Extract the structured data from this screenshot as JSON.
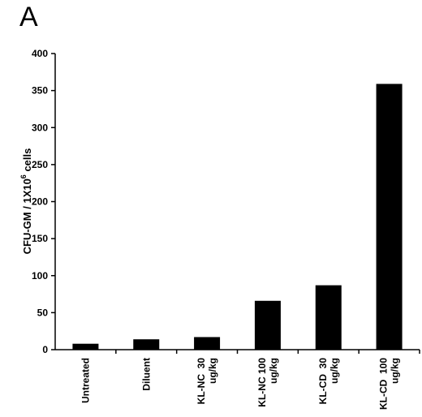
{
  "panel_label": "A",
  "chart_data": {
    "type": "bar",
    "categories": [
      [
        "Untreated"
      ],
      [
        "Diluent"
      ],
      [
        "KL-NC  30",
        "ug/kg"
      ],
      [
        "KL-NC 100",
        "ug/kg"
      ],
      [
        "KL-CD  30",
        "ug/kg"
      ],
      [
        "KL-CD  100",
        "ug/kg"
      ]
    ],
    "values": [
      8,
      14,
      17,
      66,
      87,
      359
    ],
    "ylabel": {
      "main": "CFU-GM / 1X10",
      "sup": "6",
      "tail": " cells"
    },
    "ylim": [
      0,
      400
    ],
    "yticks": [
      0,
      50,
      100,
      150,
      200,
      250,
      300,
      350,
      400
    ],
    "grid": false,
    "bar_color": "#000000"
  }
}
